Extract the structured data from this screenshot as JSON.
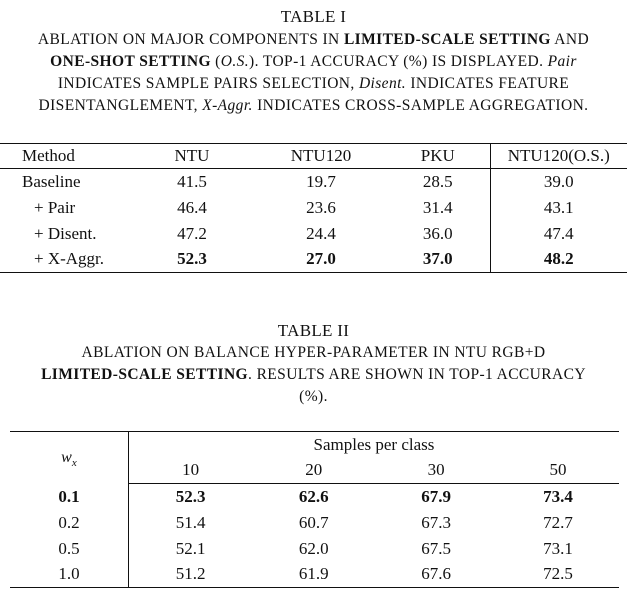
{
  "table1": {
    "title": "TABLE I",
    "caption": {
      "p1": "ABLATION ON MAJOR COMPONENTS IN ",
      "b1": "LIMITED-SCALE SETTING",
      "p2": " AND",
      "b2": "ONE-SHOT SETTING",
      "p3": " (",
      "i1": "O.S.",
      "p4": "). TOP-1 ACCURACY (%) IS DISPLAYED. ",
      "i2": "Pair",
      "p5": "INDICATES SAMPLE PAIRS SELECTION, ",
      "i3": "Disent.",
      "p6": " INDICATES FEATURE",
      "p7": "DISENTANGLEMENT, ",
      "i4": "X-Aggr.",
      "p8": " INDICATES CROSS-SAMPLE AGGREGATION."
    },
    "columns": [
      "Method",
      "NTU",
      "NTU120",
      "PKU",
      "NTU120(O.S.)"
    ],
    "rows": [
      [
        "Baseline",
        "41.5",
        "19.7",
        "28.5",
        "39.0"
      ],
      [
        "+ Pair",
        "46.4",
        "23.6",
        "31.4",
        "43.1"
      ],
      [
        "+ Disent.",
        "47.2",
        "24.4",
        "36.0",
        "47.4"
      ],
      [
        "+ X-Aggr.",
        "52.3",
        "27.0",
        "37.0",
        "48.2"
      ]
    ]
  },
  "table2": {
    "title": "TABLE II",
    "caption": {
      "p1": "ABLATION ON BALANCE HYPER-PARAMETER IN NTU RGB+D",
      "b1": "LIMITED-SCALE SETTING",
      "p2": ". RESULTS ARE SHOWN IN TOP-1 ACCURACY",
      "p3": "(%)."
    },
    "param_symbol": "w",
    "param_subscript": "x",
    "group_header": "Samples per class",
    "columns": [
      "10",
      "20",
      "30",
      "50"
    ],
    "rows": [
      [
        "0.1",
        "52.3",
        "62.6",
        "67.9",
        "73.4"
      ],
      [
        "0.2",
        "51.4",
        "60.7",
        "67.3",
        "72.7"
      ],
      [
        "0.5",
        "52.1",
        "62.0",
        "67.5",
        "73.1"
      ],
      [
        "1.0",
        "51.2",
        "61.9",
        "67.6",
        "72.5"
      ]
    ]
  }
}
